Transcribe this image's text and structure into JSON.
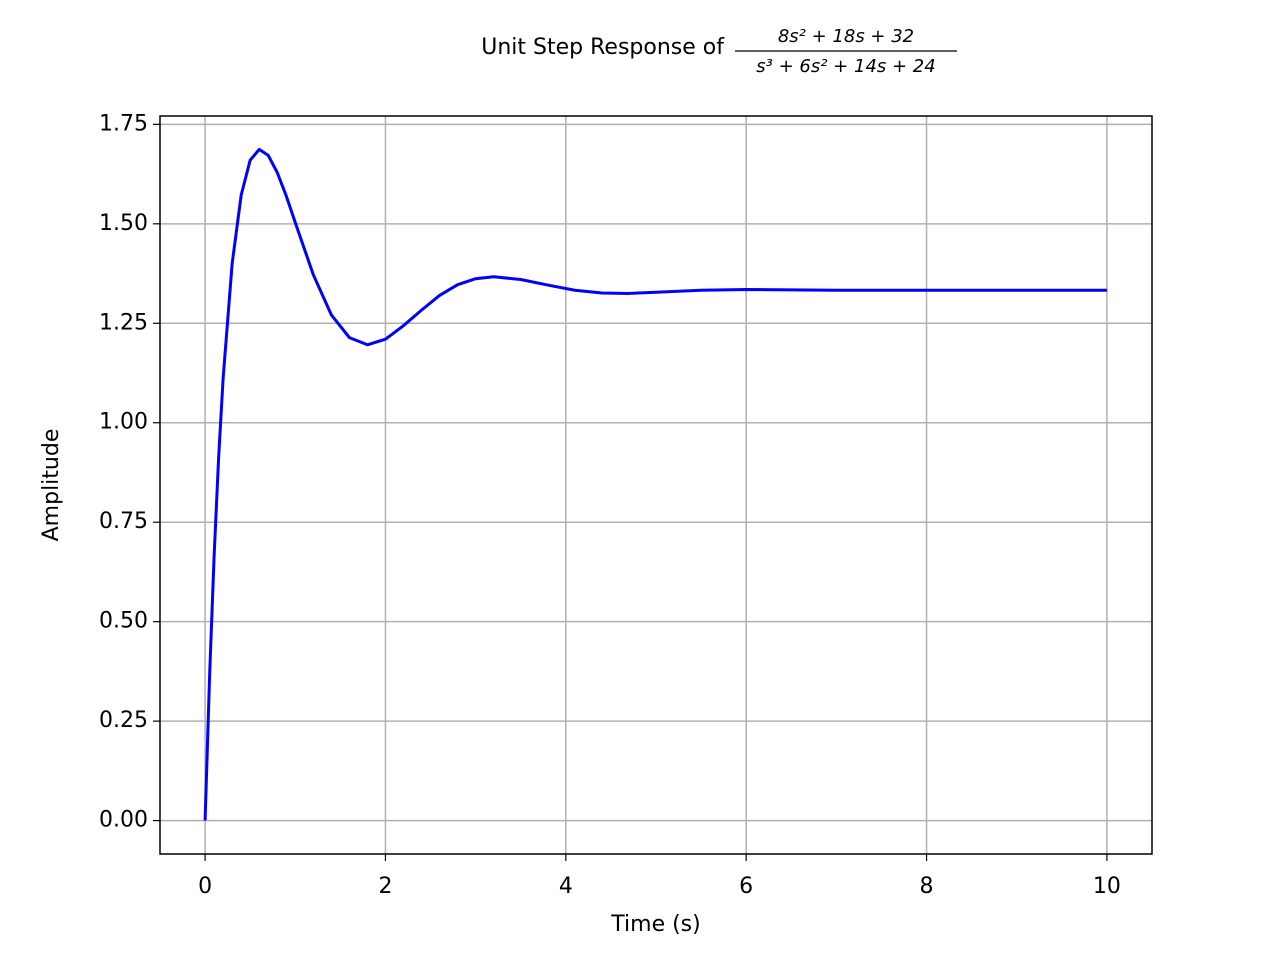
{
  "chart_data": {
    "type": "line",
    "title": "Unit Step Response of",
    "title_numerator": "8s² + 18s + 32",
    "title_denominator": "s³ + 6s² + 14s + 24",
    "x_label": "Time (s)",
    "y_label": "Amplitude",
    "x": [
      0,
      0.05,
      0.1,
      0.15,
      0.2,
      0.3,
      0.4,
      0.5,
      0.6,
      0.7,
      0.8,
      0.9,
      1.0,
      1.2,
      1.4,
      1.6,
      1.8,
      2.0,
      2.2,
      2.4,
      2.6,
      2.8,
      3.0,
      3.2,
      3.5,
      3.8,
      4.1,
      4.4,
      4.7,
      5.0,
      5.5,
      6,
      7,
      8,
      9,
      10
    ],
    "series": [
      {
        "color": "#0000ff",
        "values": [
          0,
          0.364,
          0.665,
          0.912,
          1.112,
          1.4,
          1.572,
          1.66,
          1.687,
          1.672,
          1.629,
          1.57,
          1.503,
          1.372,
          1.271,
          1.214,
          1.196,
          1.21,
          1.244,
          1.283,
          1.32,
          1.347,
          1.362,
          1.367,
          1.36,
          1.346,
          1.333,
          1.326,
          1.325,
          1.328,
          1.333,
          1.335,
          1.333,
          1.333,
          1.333,
          1.333
        ]
      }
    ],
    "xlim": [
      -0.5,
      10.5
    ],
    "xticks": [
      0,
      2,
      4,
      6,
      8,
      10
    ],
    "ylim": [
      -0.084,
      1.771
    ],
    "yticks": [
      {
        "value": 0,
        "label": "0.00"
      },
      {
        "value": 0.25,
        "label": "0.25"
      },
      {
        "value": 0.5,
        "label": "0.50"
      },
      {
        "value": 0.75,
        "label": "0.75"
      },
      {
        "value": 1.0,
        "label": "1.00"
      },
      {
        "value": 1.25,
        "label": "1.25"
      },
      {
        "value": 1.5,
        "label": "1.50"
      },
      {
        "value": 1.75,
        "label": "1.75"
      }
    ],
    "grid": true
  }
}
